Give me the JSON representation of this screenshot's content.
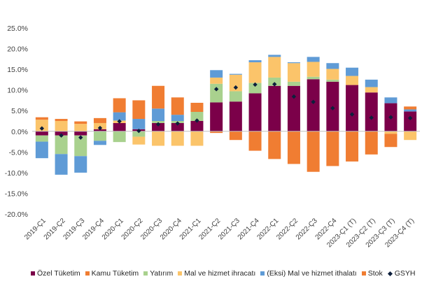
{
  "chart_data": {
    "type": "bar",
    "stacked": true,
    "title": "",
    "xlabel": "",
    "ylabel": "",
    "ylim": [
      -20,
      25
    ],
    "ytick_step": 5,
    "ytick_format": "percent_1dp",
    "grid": false,
    "legend_position": "bottom",
    "categories": [
      "2019-Ç1",
      "2019-Ç2",
      "2019-Ç3",
      "2019-Ç4",
      "2020-Ç1",
      "2020-Ç2",
      "2020-Ç3",
      "2020-Ç4",
      "2021-Ç1",
      "2021-Ç2",
      "2021-Ç3",
      "2021-Ç4",
      "2022-Ç1",
      "2022-Ç2",
      "2022-Ç3",
      "2022-Ç4",
      "2023-Ç1 (T)",
      "2023-Ç2 (T)",
      "2023-Ç3 (T)",
      "2023-Ç4 (T)"
    ],
    "series": [
      {
        "name": "Özel Tüketim",
        "color": "#7b0049",
        "values": [
          -1.0,
          -1.0,
          -1.0,
          0.5,
          2.0,
          0.5,
          2.0,
          2.0,
          2.5,
          7.0,
          7.2,
          9.2,
          11.0,
          11.0,
          12.6,
          12.0,
          11.2,
          9.4,
          6.8,
          4.8
        ]
      },
      {
        "name": "Kamu Tüketim",
        "color": "#f07d32",
        "values": [
          0.0,
          0.0,
          0.0,
          0.0,
          0.0,
          0.0,
          0.0,
          0.0,
          0.0,
          0.0,
          0.0,
          0.0,
          0.0,
          0.0,
          0.0,
          0.0,
          0.0,
          0.0,
          0.0,
          0.0
        ]
      },
      {
        "name": "Yatırım",
        "color": "#a9d18e",
        "values": [
          -1.5,
          -4.5,
          -5.0,
          -2.3,
          -2.6,
          -1.3,
          0.5,
          0.5,
          2.2,
          4.5,
          2.5,
          2.5,
          2.0,
          1.0,
          0.6,
          0.5,
          0.0,
          0.0,
          0.0,
          0.0
        ]
      },
      {
        "name": "Mal ve hizmet ihracatı",
        "color": "#fbc46a",
        "values": [
          2.8,
          2.5,
          1.8,
          1.5,
          0.6,
          -1.9,
          -3.5,
          -3.5,
          -3.5,
          1.5,
          4.0,
          5.0,
          5.0,
          4.5,
          3.6,
          2.6,
          2.2,
          1.3,
          -0.6,
          -2.1
        ]
      },
      {
        "name": "(Eksi) Mal ve hizmet ithalatı",
        "color": "#5f9bd6",
        "values": [
          -4.0,
          -5.0,
          -4.0,
          -1.0,
          2.0,
          2.5,
          3.0,
          1.5,
          0.0,
          1.8,
          0.2,
          0.5,
          0.5,
          0.2,
          1.2,
          1.4,
          2.0,
          1.8,
          1.4,
          0.5
        ]
      },
      {
        "name": "Stok",
        "color": "#f07d32",
        "values": [
          0.6,
          0.5,
          0.6,
          1.2,
          3.4,
          4.5,
          5.5,
          4.2,
          2.2,
          -0.4,
          -2.1,
          -4.7,
          -6.7,
          -7.9,
          -9.8,
          -8.4,
          -7.3,
          -5.6,
          -3.2,
          0.7
        ]
      }
    ],
    "overlay": {
      "name": "GSYH",
      "type": "marker",
      "color": "#0d1f3c",
      "values": [
        0.7,
        -1.0,
        -1.5,
        0.8,
        2.4,
        0.1,
        1.7,
        1.9,
        2.6,
        10.2,
        10.6,
        11.3,
        11.4,
        8.4,
        7.1,
        5.6,
        4.1,
        3.3,
        3.4,
        3.2
      ]
    }
  }
}
